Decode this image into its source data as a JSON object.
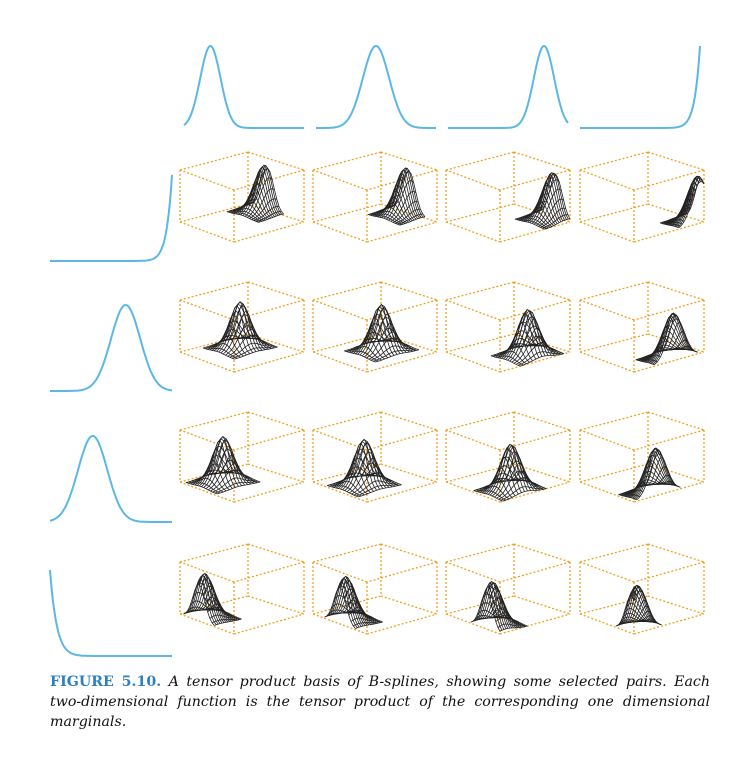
{
  "caption": {
    "label": "FIGURE 5.10.",
    "text": "A tensor product basis of B-splines, showing some selected pairs. Each two-dimensional function is the tensor product of the corresponding one dimensional marginals."
  },
  "colors": {
    "curve": "#5bb8e6",
    "box": "#f0a020",
    "surface": "#222222",
    "caption_label": "#2e7fc0"
  },
  "figure": {
    "top_marginals": [
      {
        "type": "gaussian",
        "peak": 0.22,
        "width": 0.085
      },
      {
        "type": "gaussian",
        "peak": 0.5,
        "width": 0.11
      },
      {
        "type": "gaussian",
        "peak": 0.8,
        "width": 0.085
      },
      {
        "type": "spike_end"
      }
    ],
    "left_marginals": [
      {
        "type": "spike_end"
      },
      {
        "type": "gaussian",
        "peak": 0.62,
        "width": 0.12
      },
      {
        "type": "gaussian",
        "peak": 0.35,
        "width": 0.12
      },
      {
        "type": "spike_start"
      }
    ]
  }
}
